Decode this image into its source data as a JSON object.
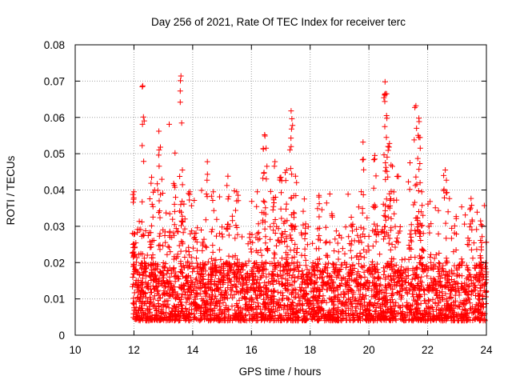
{
  "chart_data": {
    "type": "scatter",
    "title": "Day 256 of 2021, Rate Of TEC Index for receiver terc",
    "xlabel": "GPS time / hours",
    "ylabel": "ROTI / TECUs",
    "xlim": [
      10,
      24
    ],
    "ylim": [
      0,
      0.08
    ],
    "x_ticks": [
      "10",
      "12",
      "14",
      "16",
      "18",
      "20",
      "22",
      "24"
    ],
    "y_ticks": [
      "0",
      "0.01",
      "0.02",
      "0.03",
      "0.04",
      "0.05",
      "0.06",
      "0.07",
      "0.08"
    ],
    "grid": true,
    "marker": "+",
    "color": "#ff0000",
    "data_start_hour": 11.95,
    "series": [
      {
        "points": [
          [
            12.0,
            0.0395
          ],
          [
            12.0,
            0.0252
          ],
          [
            12.3,
            0.0687
          ],
          [
            12.6,
            0.0435
          ],
          [
            12.85,
            0.0562
          ],
          [
            12.9,
            0.0518
          ],
          [
            13.2,
            0.0581
          ],
          [
            13.4,
            0.0502
          ],
          [
            13.6,
            0.0714
          ],
          [
            13.65,
            0.0455
          ],
          [
            13.9,
            0.0395
          ],
          [
            14.5,
            0.0478
          ],
          [
            14.7,
            0.0395
          ],
          [
            15.2,
            0.0438
          ],
          [
            15.5,
            0.0395
          ],
          [
            16.2,
            0.0395
          ],
          [
            16.45,
            0.0552
          ],
          [
            16.5,
            0.0515
          ],
          [
            16.8,
            0.0478
          ],
          [
            17.0,
            0.0435
          ],
          [
            17.2,
            0.0455
          ],
          [
            17.35,
            0.0618
          ],
          [
            17.4,
            0.0578
          ],
          [
            17.5,
            0.0438
          ],
          [
            17.8,
            0.0375
          ],
          [
            18.3,
            0.0385
          ],
          [
            19.4,
            0.0325
          ],
          [
            19.8,
            0.0532
          ],
          [
            20.2,
            0.0495
          ],
          [
            20.55,
            0.0698
          ],
          [
            20.6,
            0.0665
          ],
          [
            20.6,
            0.0605
          ],
          [
            20.7,
            0.0528
          ],
          [
            20.8,
            0.0465
          ],
          [
            21.0,
            0.0438
          ],
          [
            21.4,
            0.0475
          ],
          [
            21.6,
            0.0632
          ],
          [
            21.7,
            0.0598
          ],
          [
            21.7,
            0.0545
          ],
          [
            21.8,
            0.0395
          ],
          [
            22.6,
            0.0455
          ],
          [
            23.5,
            0.0358
          ],
          [
            23.8,
            0.0315
          ]
        ]
      }
    ]
  }
}
